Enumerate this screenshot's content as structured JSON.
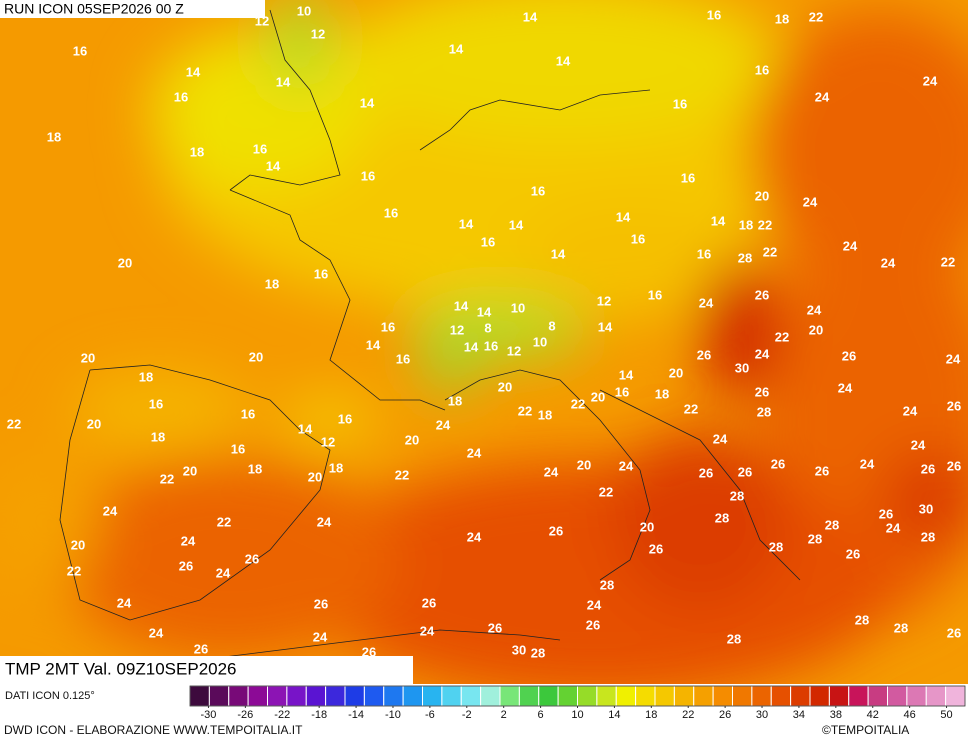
{
  "header": {
    "run": "RUN ICON 05SEP2026 00 Z"
  },
  "map": {
    "temperature_labels": [
      10,
      12,
      12,
      14,
      16,
      18,
      22,
      16,
      14,
      14,
      14,
      14,
      16,
      24,
      16,
      14,
      16,
      24,
      18,
      18,
      16,
      14,
      16,
      16,
      16,
      20,
      24,
      16,
      14,
      14,
      14,
      14,
      18,
      22,
      16,
      16,
      24,
      14,
      16,
      28,
      22,
      24,
      22,
      20,
      16,
      18,
      16,
      24,
      26,
      24,
      14,
      14,
      10,
      12,
      16,
      12,
      8,
      8,
      14,
      22,
      20,
      14,
      14,
      16,
      12,
      10,
      26,
      24,
      26,
      24,
      20,
      20,
      16,
      18,
      30,
      14,
      20,
      26,
      24,
      16,
      20,
      16,
      18,
      18,
      22,
      20,
      22,
      28,
      24,
      26,
      22,
      20,
      16,
      16,
      22,
      18,
      24,
      18,
      14,
      12,
      20,
      24,
      24,
      16,
      24,
      20,
      24,
      26,
      26,
      24,
      26,
      26,
      20,
      18,
      22,
      20,
      18,
      22,
      24,
      26,
      26,
      22,
      28,
      24,
      22,
      24,
      28,
      26,
      30,
      24,
      20,
      28,
      28,
      20,
      24,
      24,
      26,
      26,
      28,
      28,
      26,
      22,
      26,
      24,
      26,
      28,
      24,
      26,
      26,
      24,
      28,
      28,
      26,
      24,
      24,
      24,
      26,
      26,
      28,
      26,
      26,
      30,
      28
    ]
  },
  "colorbar": {
    "lim": [
      -32,
      52
    ],
    "ticks": [
      -30,
      -26,
      -22,
      -18,
      -14,
      -10,
      -6,
      -2,
      2,
      6,
      10,
      14,
      18,
      22,
      26,
      30,
      34,
      38,
      42,
      46,
      50
    ],
    "colors": [
      "#3d0a3d",
      "#5a0a5a",
      "#780a78",
      "#8c0a96",
      "#8c14b4",
      "#7814c8",
      "#5a14d2",
      "#3c28dc",
      "#1e3ce6",
      "#1e5af0",
      "#1e78f0",
      "#1e96f0",
      "#28b4f0",
      "#50d2f0",
      "#78e6f0",
      "#a0f0dc",
      "#78e678",
      "#50d250",
      "#3cc83c",
      "#64d232",
      "#96dc28",
      "#c8e61e",
      "#f0f000",
      "#f5dc00",
      "#f5c800",
      "#f5b400",
      "#f5a000",
      "#f58c00",
      "#f07800",
      "#eb6400",
      "#e65000",
      "#dc3c00",
      "#d22800",
      "#c81414",
      "#c8145a",
      "#c83c82",
      "#d25aa0",
      "#dc78b4",
      "#e696c8",
      "#f0b4dc"
    ]
  },
  "footer": {
    "field": "TMP 2MT Val. 09Z10SEP2026",
    "source": "DATI ICON 0.125°",
    "credit": "DWD ICON - ELABORAZIONE WWW.TEMPOITALIA.IT",
    "copyright": "©TEMPOITALIA"
  }
}
